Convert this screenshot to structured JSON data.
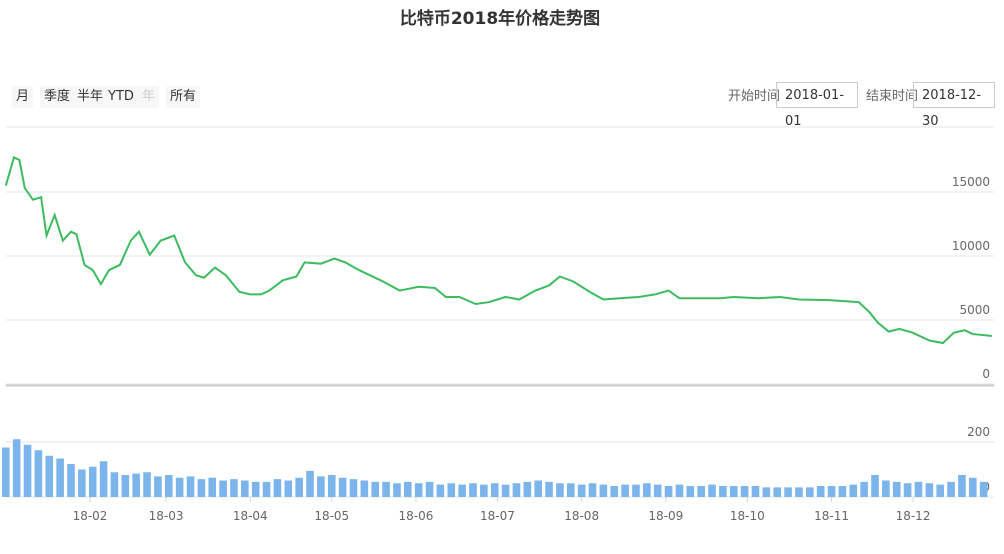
{
  "range_selector": {
    "buttons": [
      "月",
      "季度",
      "半年",
      "YTD",
      "年",
      "所有"
    ],
    "disabled": [
      false,
      false,
      false,
      false,
      true,
      false
    ],
    "start_label": "开始时间",
    "start_date": "2018-01-01",
    "end_label": "结束时间",
    "end_date": "2018-12-30"
  },
  "chart_data": [
    {
      "type": "line",
      "title": "比特币2018年价格走势图",
      "color": "#3cbc5f",
      "grid": true,
      "xlim": [
        1,
        364
      ],
      "ylim": [
        0,
        20000
      ],
      "yticks": [
        0,
        5000,
        10000,
        15000
      ],
      "x": [
        1,
        4,
        6,
        8,
        11,
        14,
        16,
        19,
        22,
        25,
        27,
        30,
        33,
        36,
        39,
        43,
        47,
        50,
        54,
        58,
        63,
        67,
        71,
        74,
        78,
        82,
        87,
        91,
        95,
        98,
        103,
        108,
        111,
        117,
        122,
        126,
        131,
        135,
        140,
        146,
        153,
        159,
        163,
        168,
        174,
        179,
        185,
        190,
        196,
        201,
        205,
        210,
        216,
        221,
        227,
        234,
        240,
        245,
        249,
        256,
        264,
        269,
        278,
        286,
        293,
        304,
        315,
        319,
        322,
        326,
        330,
        335,
        341,
        346,
        350,
        354,
        357,
        362,
        364
      ],
      "values": [
        15500,
        17700,
        17500,
        15300,
        14400,
        14600,
        11600,
        13200,
        11200,
        11900,
        11700,
        9300,
        8900,
        7800,
        8900,
        9300,
        11200,
        11900,
        10100,
        11200,
        11600,
        9500,
        8500,
        8300,
        9100,
        8500,
        7200,
        7000,
        7000,
        7300,
        8100,
        8400,
        9500,
        9400,
        9800,
        9500,
        8900,
        8500,
        8000,
        7300,
        7600,
        7500,
        6800,
        6800,
        6250,
        6400,
        6800,
        6600,
        7300,
        7700,
        8400,
        8000,
        7200,
        6600,
        6700,
        6800,
        7000,
        7300,
        6700,
        6700,
        6700,
        6800,
        6700,
        6800,
        6600,
        6550,
        6400,
        5600,
        4800,
        4100,
        4300,
        4000,
        3400,
        3200,
        4000,
        4200,
        3900,
        3800,
        3750
      ]
    },
    {
      "type": "bar",
      "color": "#7cb5ec",
      "grid": true,
      "xlim": [
        1,
        364
      ],
      "ylim": [
        0,
        300
      ],
      "yticks": [
        0,
        200
      ],
      "xticks": [
        {
          "value": 32,
          "label": "18-02"
        },
        {
          "value": 60,
          "label": "18-03"
        },
        {
          "value": 91,
          "label": "18-04"
        },
        {
          "value": 121,
          "label": "18-05"
        },
        {
          "value": 152,
          "label": "18-06"
        },
        {
          "value": 182,
          "label": "18-07"
        },
        {
          "value": 213,
          "label": "18-08"
        },
        {
          "value": 244,
          "label": "18-09"
        },
        {
          "value": 274,
          "label": "18-10"
        },
        {
          "value": 305,
          "label": "18-11"
        },
        {
          "value": 335,
          "label": "18-12"
        }
      ],
      "x": [
        1,
        5,
        9,
        13,
        17,
        21,
        25,
        29,
        33,
        37,
        41,
        45,
        49,
        53,
        57,
        61,
        65,
        69,
        73,
        77,
        81,
        85,
        89,
        93,
        97,
        101,
        105,
        109,
        113,
        117,
        121,
        125,
        129,
        133,
        137,
        141,
        145,
        149,
        153,
        157,
        161,
        165,
        169,
        173,
        177,
        181,
        185,
        189,
        193,
        197,
        201,
        205,
        209,
        213,
        217,
        221,
        225,
        229,
        233,
        237,
        241,
        245,
        249,
        253,
        257,
        261,
        265,
        269,
        273,
        277,
        281,
        285,
        289,
        293,
        297,
        301,
        305,
        309,
        313,
        317,
        321,
        325,
        329,
        333,
        337,
        341,
        345,
        349,
        353,
        357,
        361
      ],
      "values": [
        180,
        210,
        190,
        170,
        150,
        140,
        120,
        100,
        110,
        130,
        90,
        80,
        85,
        90,
        75,
        80,
        70,
        75,
        65,
        70,
        60,
        65,
        60,
        55,
        55,
        65,
        60,
        70,
        95,
        75,
        80,
        70,
        65,
        60,
        55,
        55,
        50,
        55,
        50,
        55,
        45,
        50,
        45,
        50,
        45,
        50,
        45,
        50,
        55,
        60,
        55,
        50,
        50,
        45,
        50,
        45,
        40,
        45,
        45,
        50,
        45,
        40,
        45,
        40,
        40,
        45,
        40,
        40,
        40,
        40,
        35,
        35,
        35,
        35,
        35,
        40,
        40,
        40,
        45,
        55,
        80,
        60,
        55,
        50,
        55,
        50,
        45,
        55,
        80,
        70,
        55
      ]
    }
  ]
}
